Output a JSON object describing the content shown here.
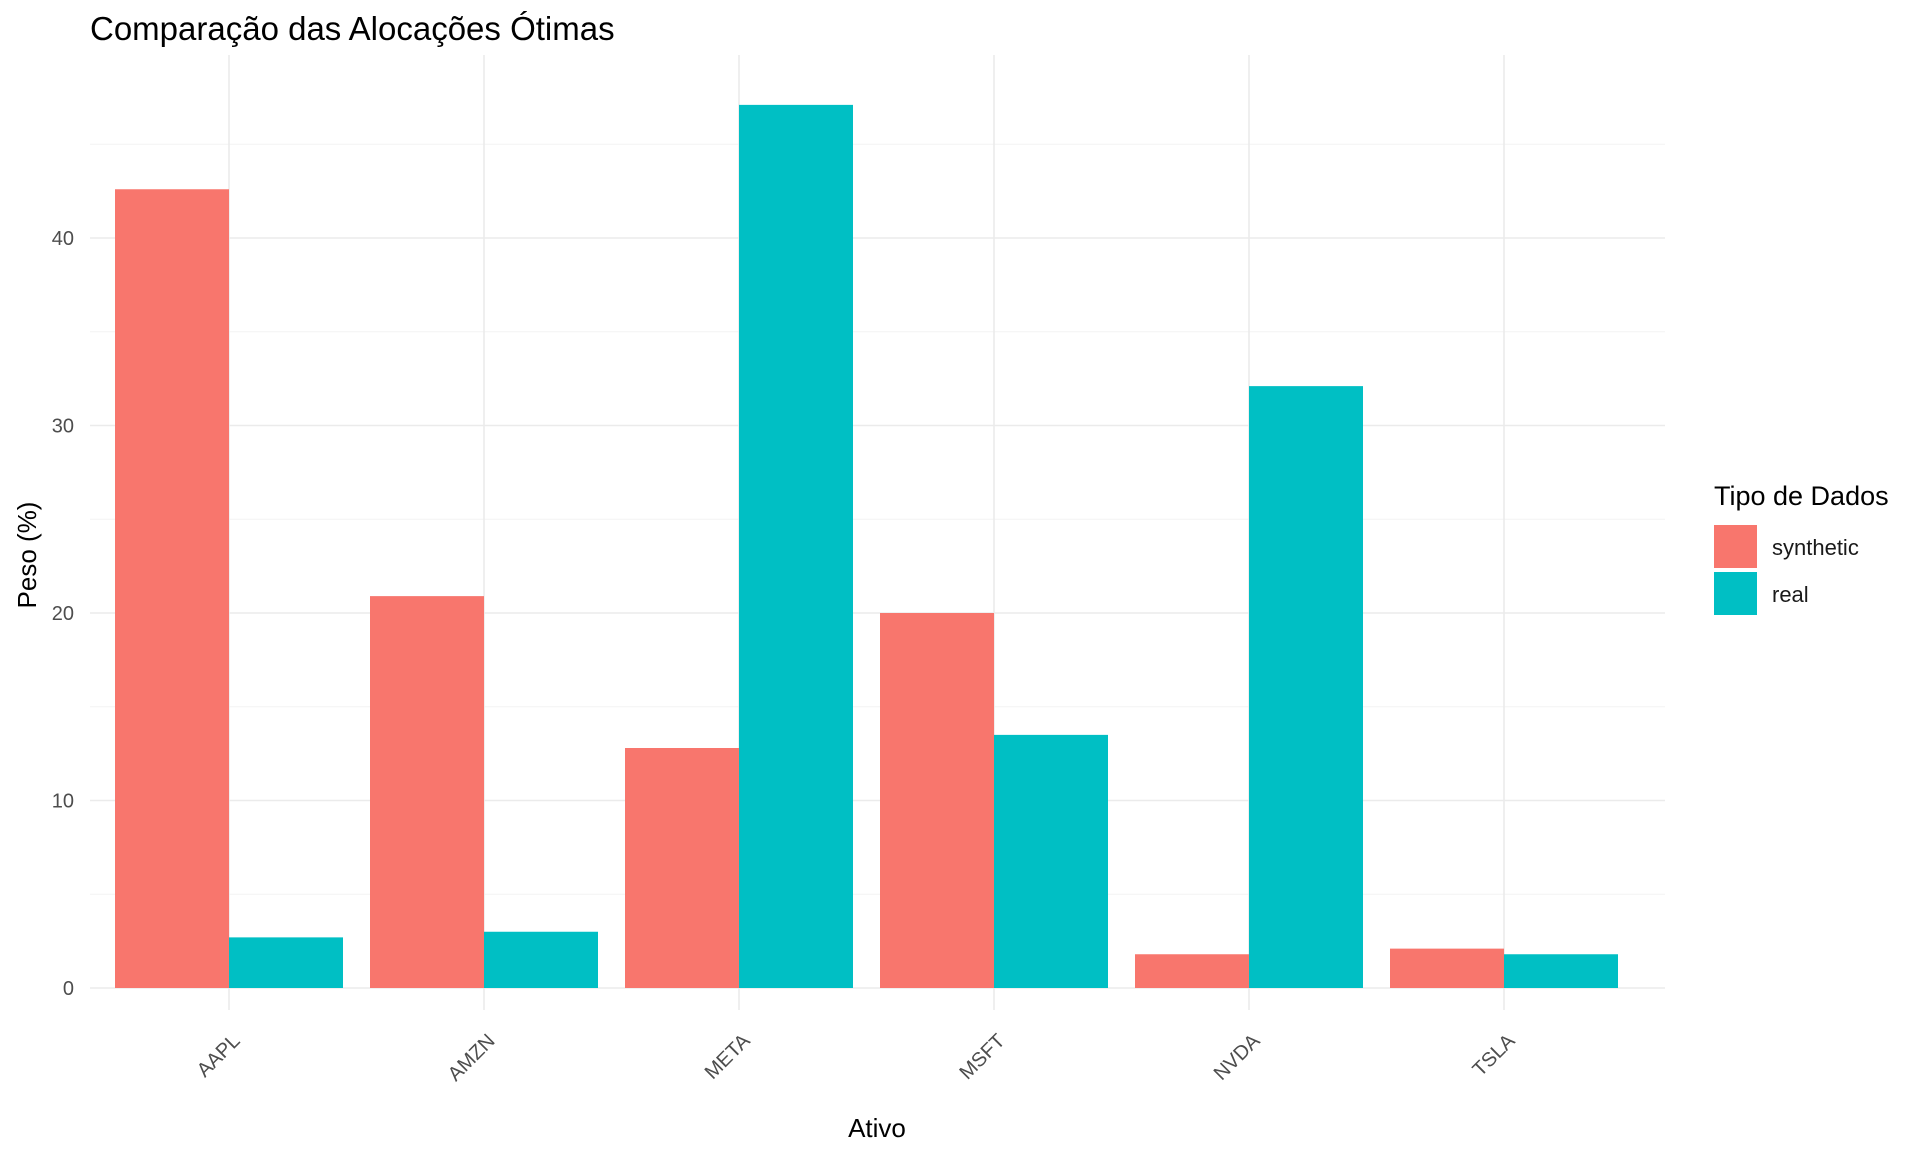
{
  "chart_data": {
    "type": "bar",
    "title": "Comparação das Alocações Ótimas",
    "xlabel": "Ativo",
    "ylabel": "Peso (%)",
    "categories": [
      "AAPL",
      "AMZN",
      "META",
      "MSFT",
      "NVDA",
      "TSLA"
    ],
    "series": [
      {
        "name": "synthetic",
        "color": "#F8766D",
        "values": [
          42.6,
          20.9,
          12.8,
          20.0,
          1.8,
          2.1
        ]
      },
      {
        "name": "real",
        "color": "#00BFC4",
        "values": [
          2.7,
          3.0,
          47.1,
          13.5,
          32.1,
          1.8
        ]
      }
    ],
    "ylim": [
      0,
      49
    ],
    "yticks": [
      0,
      10,
      20,
      30,
      40
    ],
    "grid": true,
    "legend": {
      "title": "Tipo de Dados",
      "position": "right"
    }
  }
}
